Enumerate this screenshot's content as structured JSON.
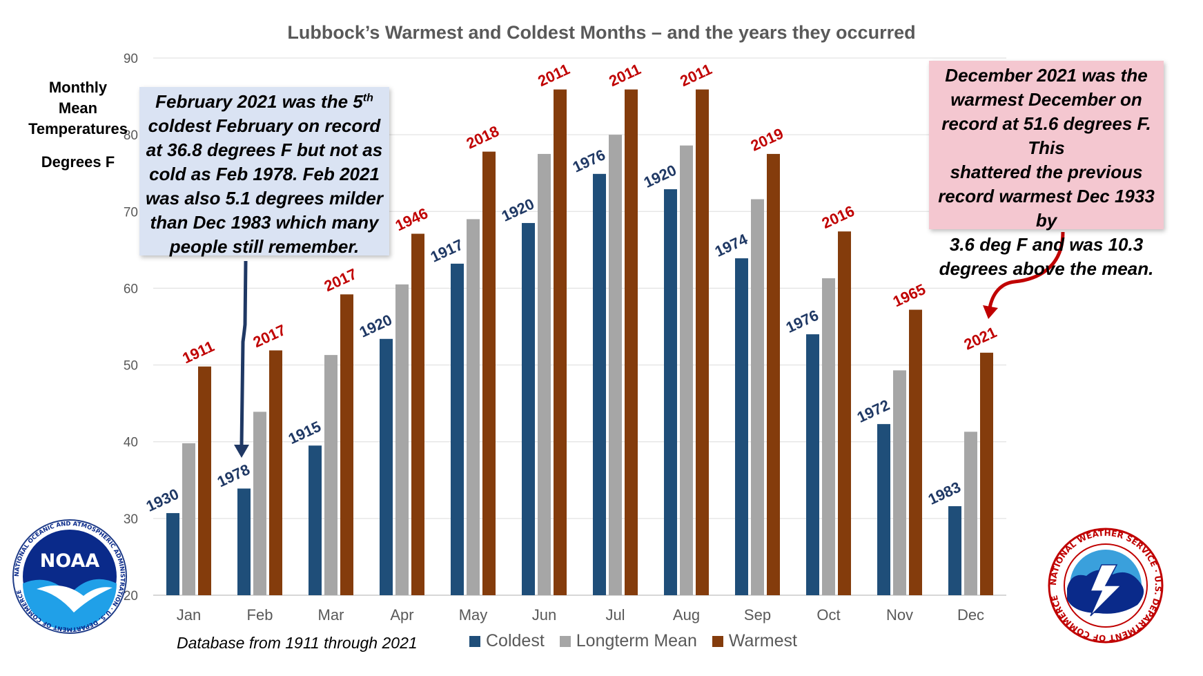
{
  "title": "Lubbock’s Warmest and Coldest Months – and the years they occurred",
  "y_axis_label": {
    "line1": "Monthly",
    "line2": "Mean",
    "line3": "Temperatures",
    "line4": "Degrees F"
  },
  "footnote": "Database from 1911 through 2021",
  "colors": {
    "coldest": "#1f4e79",
    "mean": "#a6a6a6",
    "warmest": "#843c0c",
    "cold_label": "#1f3864",
    "warm_label": "#c00000",
    "arrow_left": "#1f3864",
    "arrow_right": "#c00000"
  },
  "callout_left": {
    "line1_pre": "February 2021 was the 5",
    "line1_sup": "th",
    "line2": "coldest February on record",
    "line3": "at 36.8 degrees F but not as",
    "line4": "cold as Feb 1978. Feb 2021",
    "line5": "was also 5.1 degrees milder",
    "line6": "than Dec 1983 which many",
    "line7": "people still remember."
  },
  "callout_right": {
    "line1": "December 2021 was the",
    "line2": "warmest December on",
    "line3": "record at 51.6 degrees F. This",
    "line4": "shattered the previous",
    "line5": "record warmest Dec 1933 by",
    "line6": "3.6 deg F and was 10.3",
    "line7": "degrees above the mean."
  },
  "logos": {
    "noaa_text": "NOAA",
    "noaa_ring": "NATIONAL OCEANIC AND ATMOSPHERIC ADMINISTRATION · U.S. DEPARTMENT OF COMMERCE",
    "nws_ring": "NATIONAL WEATHER SERVICE · U.S. DEPARTMENT OF COMMERCE"
  },
  "chart_data": {
    "type": "bar",
    "title": "Lubbock’s Warmest and Coldest Months – and the years they occurred",
    "ylabel": "Monthly Mean Temperatures Degrees F",
    "xlabel": "",
    "ylim": [
      20,
      90
    ],
    "yticks": [
      20,
      30,
      40,
      50,
      60,
      70,
      80,
      90
    ],
    "grid": true,
    "legend_position": "bottom",
    "categories": [
      "Jan",
      "Feb",
      "Mar",
      "Apr",
      "May",
      "Jun",
      "Jul",
      "Aug",
      "Sep",
      "Oct",
      "Nov",
      "Dec"
    ],
    "series": [
      {
        "name": "Coldest",
        "values": [
          30.7,
          33.9,
          39.5,
          53.4,
          63.2,
          68.5,
          74.9,
          72.9,
          63.9,
          54.0,
          42.3,
          31.6
        ],
        "year_labels": [
          "1930",
          "1978",
          "1915",
          "1920",
          "1917",
          "1920",
          "1976",
          "1920",
          "1974",
          "1976",
          "1972",
          "1983"
        ]
      },
      {
        "name": "Longterm Mean",
        "values": [
          39.8,
          43.9,
          51.3,
          60.5,
          69.0,
          77.5,
          80.0,
          78.6,
          71.6,
          61.3,
          49.3,
          41.3
        ]
      },
      {
        "name": "Warmest",
        "values": [
          49.8,
          51.9,
          59.2,
          67.1,
          77.8,
          85.9,
          85.9,
          85.9,
          77.5,
          67.4,
          57.2,
          51.6
        ],
        "year_labels": [
          "1911",
          "2017",
          "2017",
          "1946",
          "2018",
          "2011",
          "2011",
          "2011",
          "2019",
          "2016",
          "1965",
          "2021"
        ]
      }
    ]
  }
}
